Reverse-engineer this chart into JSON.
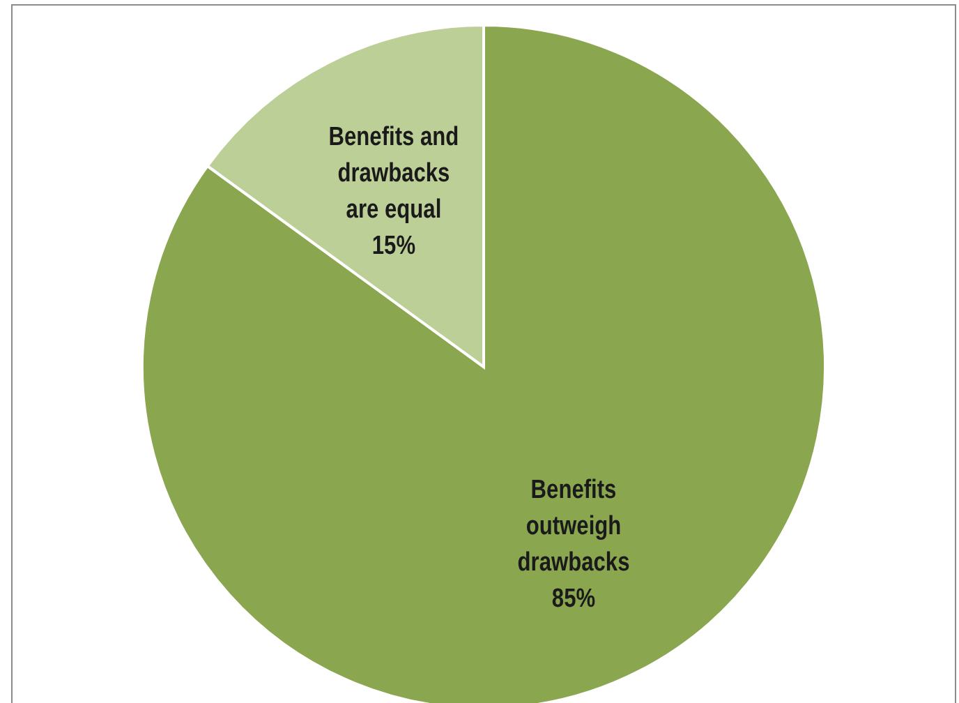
{
  "chart_data": {
    "type": "pie",
    "categories": [
      "Benefits outweigh drawbacks",
      "Benefits and drawbacks are equal"
    ],
    "values": [
      85,
      15
    ],
    "colors": [
      "#8aa64f",
      "#bccf96"
    ],
    "value_labels": [
      "85%",
      "15%"
    ]
  }
}
